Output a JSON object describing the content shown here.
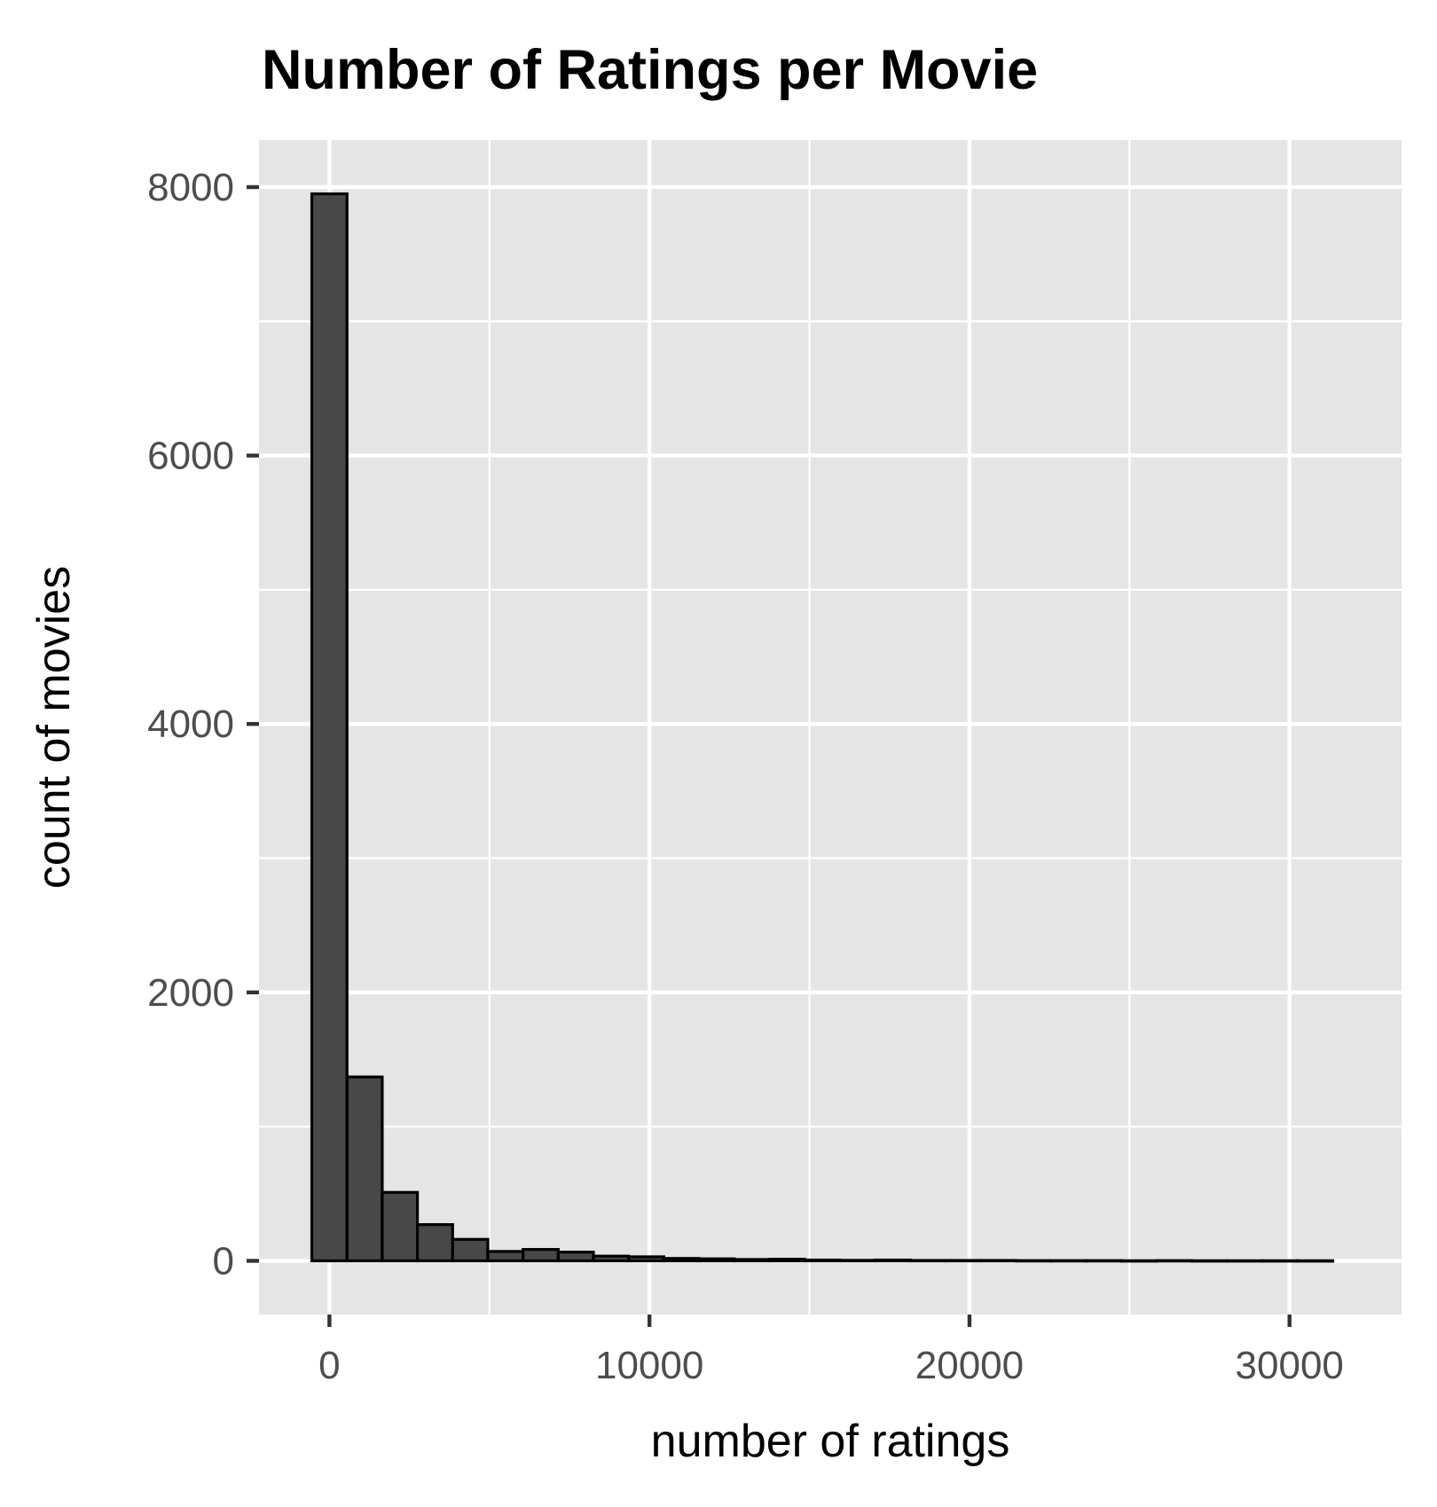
{
  "chart_data": {
    "type": "bar",
    "title": "Number of Ratings per Movie",
    "xlabel": "number of ratings",
    "ylabel": "count of movies",
    "xlim": [
      -2200,
      33500
    ],
    "ylim": [
      -400,
      8350
    ],
    "x_ticks": [
      0,
      10000,
      20000,
      30000
    ],
    "x_tick_labels": [
      "0",
      "10000",
      "20000",
      "30000"
    ],
    "y_ticks": [
      0,
      2000,
      4000,
      6000,
      8000
    ],
    "y_tick_labels": [
      "0",
      "2000",
      "4000",
      "6000",
      "8000"
    ],
    "grid": true,
    "bin_width": 1100,
    "bins": [
      {
        "x": 0,
        "count": 7950
      },
      {
        "x": 1100,
        "count": 1370
      },
      {
        "x": 2200,
        "count": 510
      },
      {
        "x": 3300,
        "count": 270
      },
      {
        "x": 4400,
        "count": 160
      },
      {
        "x": 5500,
        "count": 70
      },
      {
        "x": 6600,
        "count": 85
      },
      {
        "x": 7700,
        "count": 65
      },
      {
        "x": 8800,
        "count": 35
      },
      {
        "x": 9900,
        "count": 30
      },
      {
        "x": 11000,
        "count": 18
      },
      {
        "x": 12100,
        "count": 15
      },
      {
        "x": 13200,
        "count": 10
      },
      {
        "x": 14300,
        "count": 12
      },
      {
        "x": 15400,
        "count": 6
      },
      {
        "x": 16500,
        "count": 4
      },
      {
        "x": 17600,
        "count": 6
      },
      {
        "x": 18700,
        "count": 3
      },
      {
        "x": 19800,
        "count": 3
      },
      {
        "x": 20900,
        "count": 3
      },
      {
        "x": 22000,
        "count": 2
      },
      {
        "x": 23100,
        "count": 2
      },
      {
        "x": 24200,
        "count": 2
      },
      {
        "x": 25300,
        "count": 1
      },
      {
        "x": 26400,
        "count": 2
      },
      {
        "x": 27500,
        "count": 1
      },
      {
        "x": 28600,
        "count": 1
      },
      {
        "x": 29700,
        "count": 1
      },
      {
        "x": 30800,
        "count": 1
      }
    ],
    "colors": {
      "panel": "#e5e5e5",
      "grid": "#ffffff",
      "bar_fill": "#484848",
      "bar_stroke": "#000000",
      "tick": "#333333",
      "tick_label": "#4d4d4d"
    }
  }
}
